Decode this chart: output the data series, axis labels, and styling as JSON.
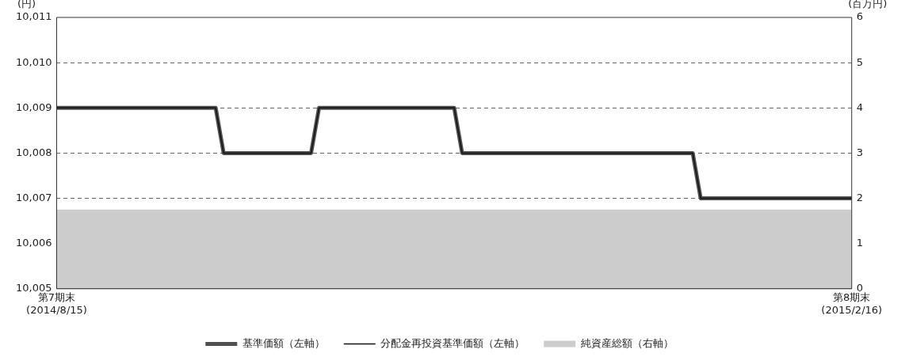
{
  "chart_data": {
    "type": "line",
    "categories": [
      "第7期末\n(2014/8/15)",
      null,
      null,
      null,
      null,
      null,
      null,
      null,
      null,
      null,
      null,
      null,
      null,
      null,
      null,
      null,
      null,
      null,
      null,
      null,
      null,
      null,
      null,
      null,
      null,
      null,
      null,
      null,
      null,
      null,
      null,
      null,
      null,
      null,
      null,
      null,
      null,
      null,
      null,
      null,
      null,
      null,
      null,
      null,
      null,
      null,
      null,
      null,
      null,
      null,
      null,
      null,
      null,
      null,
      null,
      null,
      null,
      null,
      null,
      null,
      null,
      null,
      null,
      null,
      null,
      null,
      null,
      null,
      null,
      null,
      null,
      null,
      null,
      null,
      null,
      null,
      null,
      null,
      null,
      null,
      null,
      null,
      null,
      null,
      null,
      null,
      null,
      null,
      null,
      null,
      null,
      null,
      null,
      null,
      null,
      null,
      null,
      null,
      null,
      null,
      "第8期末\n(2015/2/16)"
    ],
    "ylabel": "(円)",
    "y2label": "(百万円)",
    "ylim": [
      10005,
      10011
    ],
    "yticks": [
      {
        "value": 10005,
        "label": "10,005"
      },
      {
        "value": 10006,
        "label": "10,006"
      },
      {
        "value": 10007,
        "label": "10,007"
      },
      {
        "value": 10008,
        "label": "10,008"
      },
      {
        "value": 10009,
        "label": "10,009"
      },
      {
        "value": 10010,
        "label": "10,010"
      },
      {
        "value": 10011,
        "label": "10,011"
      }
    ],
    "y2lim": [
      0,
      6
    ],
    "y2ticks": [
      0,
      1,
      2,
      3,
      4,
      5,
      6
    ],
    "grid": "y",
    "legend": "bottom",
    "marker": "none",
    "series": [
      {
        "name": "純資産総額（右軸）",
        "type": "area",
        "axis": "y2",
        "color": "#cccccc",
        "values": [
          1.75,
          1.75,
          1.75,
          1.75,
          1.75,
          1.75,
          1.75,
          1.75,
          1.75,
          1.75,
          1.75,
          1.75,
          1.75,
          1.75,
          1.75,
          1.75,
          1.75,
          1.75,
          1.75,
          1.75,
          1.75,
          1.75,
          1.75,
          1.75,
          1.75,
          1.75,
          1.75,
          1.75,
          1.75,
          1.75,
          1.75,
          1.75,
          1.75,
          1.75,
          1.75,
          1.75,
          1.75,
          1.75,
          1.75,
          1.75,
          1.75,
          1.75,
          1.75,
          1.75,
          1.75,
          1.75,
          1.75,
          1.75,
          1.75,
          1.75,
          1.75,
          1.75,
          1.75,
          1.75,
          1.75,
          1.75,
          1.75,
          1.75,
          1.75,
          1.75,
          1.75,
          1.75,
          1.75,
          1.75,
          1.75,
          1.75,
          1.75,
          1.75,
          1.75,
          1.75,
          1.75,
          1.75,
          1.75,
          1.75,
          1.75,
          1.75,
          1.75,
          1.75,
          1.75,
          1.75,
          1.75,
          1.75,
          1.75,
          1.75,
          1.75,
          1.75,
          1.75,
          1.75,
          1.75,
          1.75,
          1.75,
          1.75,
          1.75,
          1.75,
          1.75,
          1.75,
          1.75,
          1.75,
          1.75,
          1.75,
          1.75
        ]
      },
      {
        "name": "分配金再投資基準価額（左軸）",
        "type": "line",
        "color": "#111111",
        "values": [
          10009,
          10009,
          10009,
          10009,
          10009,
          10009,
          10009,
          10009,
          10009,
          10009,
          10009,
          10009,
          10009,
          10009,
          10009,
          10009,
          10009,
          10009,
          10009,
          10009,
          10009,
          10008,
          10008,
          10008,
          10008,
          10008,
          10008,
          10008,
          10008,
          10008,
          10008,
          10008,
          10008,
          10009,
          10009,
          10009,
          10009,
          10009,
          10009,
          10009,
          10009,
          10009,
          10009,
          10009,
          10009,
          10009,
          10009,
          10009,
          10009,
          10009,
          10009,
          10008,
          10008,
          10008,
          10008,
          10008,
          10008,
          10008,
          10008,
          10008,
          10008,
          10008,
          10008,
          10008,
          10008,
          10008,
          10008,
          10008,
          10008,
          10008,
          10008,
          10008,
          10008,
          10008,
          10008,
          10008,
          10008,
          10008,
          10008,
          10008,
          10008,
          10007,
          10007,
          10007,
          10007,
          10007,
          10007,
          10007,
          10007,
          10007,
          10007,
          10007,
          10007,
          10007,
          10007,
          10007,
          10007,
          10007,
          10007,
          10007,
          10007
        ]
      },
      {
        "name": "基準価額（左軸）",
        "type": "line",
        "color": "#505050",
        "values": [
          10009,
          10009,
          10009,
          10009,
          10009,
          10009,
          10009,
          10009,
          10009,
          10009,
          10009,
          10009,
          10009,
          10009,
          10009,
          10009,
          10009,
          10009,
          10009,
          10009,
          10009,
          10008,
          10008,
          10008,
          10008,
          10008,
          10008,
          10008,
          10008,
          10008,
          10008,
          10008,
          10008,
          10009,
          10009,
          10009,
          10009,
          10009,
          10009,
          10009,
          10009,
          10009,
          10009,
          10009,
          10009,
          10009,
          10009,
          10009,
          10009,
          10009,
          10009,
          10008,
          10008,
          10008,
          10008,
          10008,
          10008,
          10008,
          10008,
          10008,
          10008,
          10008,
          10008,
          10008,
          10008,
          10008,
          10008,
          10008,
          10008,
          10008,
          10008,
          10008,
          10008,
          10008,
          10008,
          10008,
          10008,
          10008,
          10008,
          10008,
          10008,
          10007,
          10007,
          10007,
          10007,
          10007,
          10007,
          10007,
          10007,
          10007,
          10007,
          10007,
          10007,
          10007,
          10007,
          10007,
          10007,
          10007,
          10007,
          10007,
          10007
        ]
      }
    ]
  }
}
